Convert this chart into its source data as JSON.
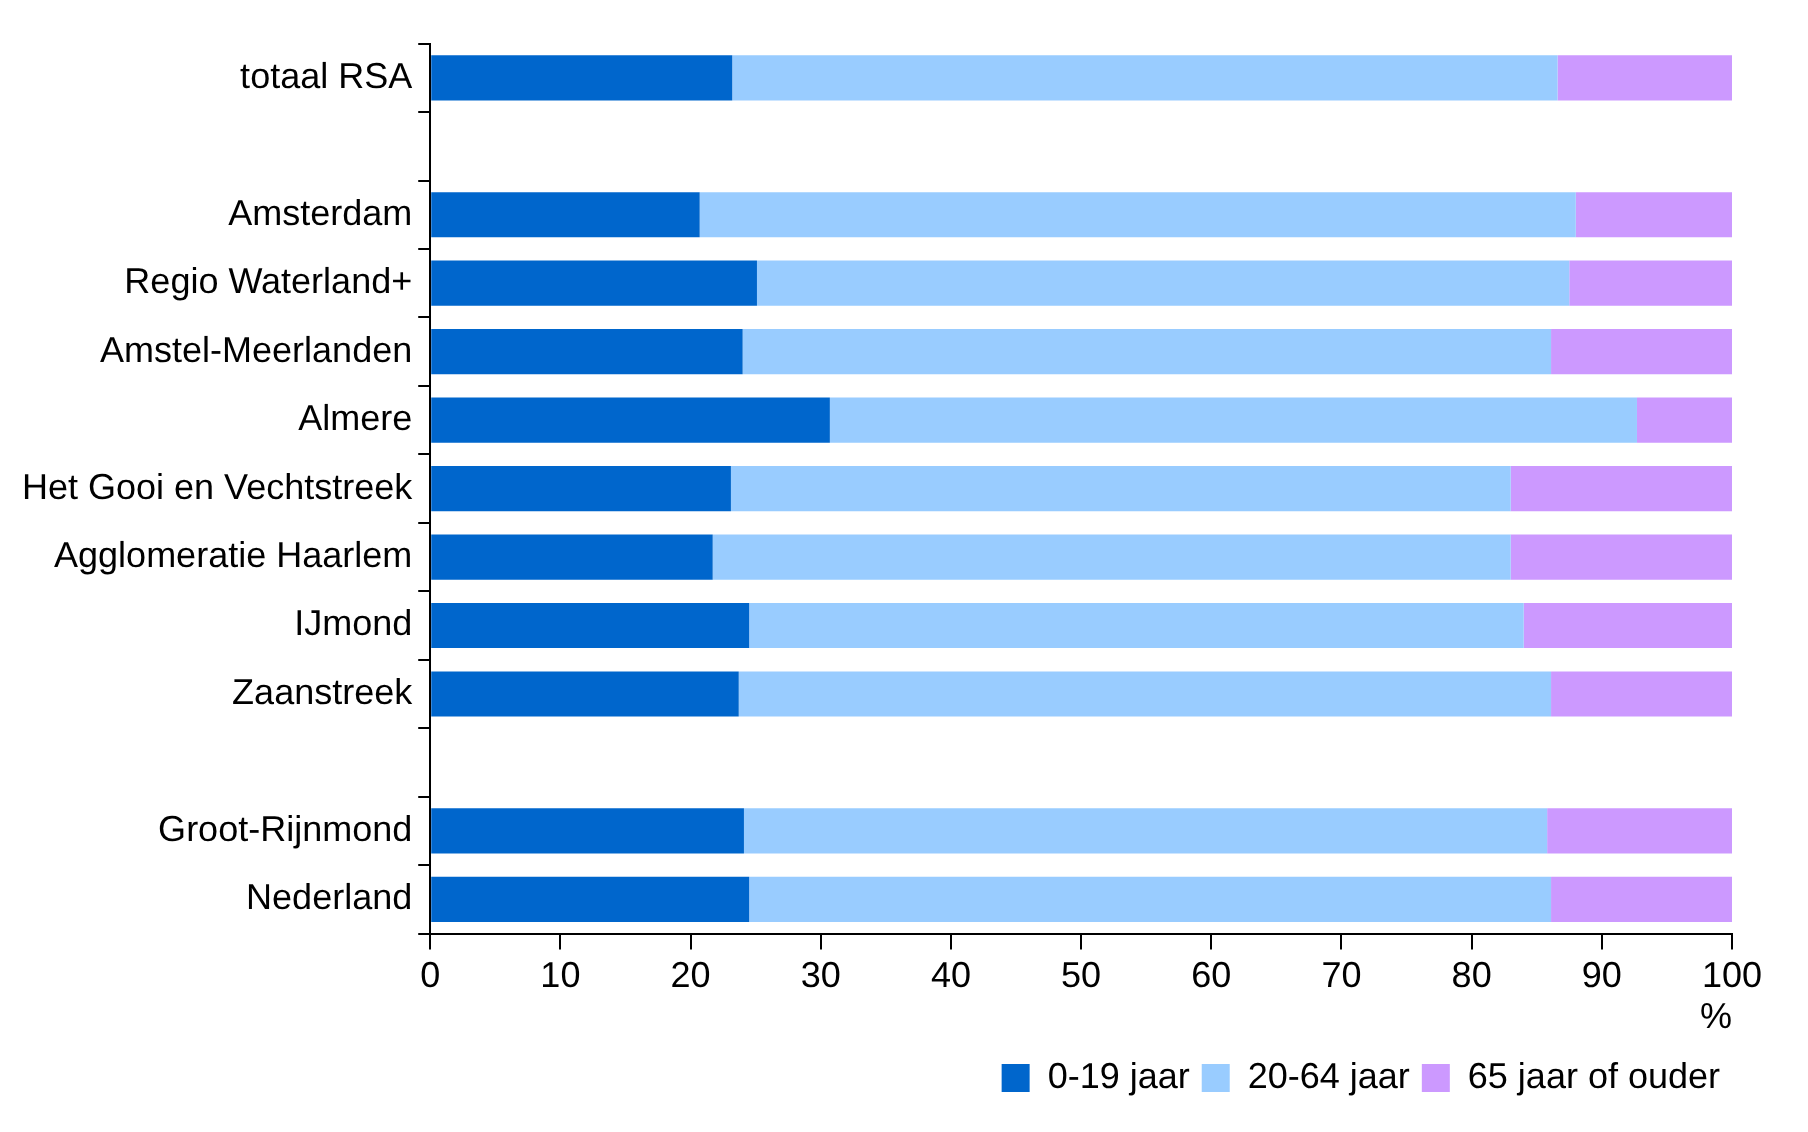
{
  "chart_data": {
    "type": "bar",
    "orientation": "horizontal",
    "stacked": true,
    "categories": [
      "totaal RSA",
      null,
      "Amsterdam",
      "Regio Waterland+",
      "Amstel-Meerlanden",
      "Almere",
      "Het Gooi en Vechtstreek",
      "Agglomeratie Haarlem",
      "IJmond",
      "Zaanstreek",
      null,
      "Groot-Rijnmond",
      "Nederland"
    ],
    "series": [
      {
        "name": "0-19 jaar",
        "color": "#0066cc",
        "values": [
          23.2,
          null,
          20.7,
          25.1,
          24.0,
          30.7,
          23.1,
          21.7,
          24.5,
          23.7,
          null,
          24.1,
          24.5
        ]
      },
      {
        "name": "20-64 jaar",
        "color": "#99ccff",
        "values": [
          63.4,
          null,
          67.3,
          62.4,
          62.1,
          62.0,
          59.9,
          61.3,
          59.5,
          62.4,
          null,
          61.7,
          61.6
        ]
      },
      {
        "name": "65 jaar of ouder",
        "color": "#cc99ff",
        "values": [
          13.4,
          null,
          12.0,
          12.5,
          13.9,
          7.3,
          17.0,
          17.0,
          16.0,
          13.9,
          null,
          14.2,
          13.9
        ]
      }
    ],
    "xlabel": "%",
    "xlim": [
      0,
      100
    ],
    "xticks": [
      0,
      10,
      20,
      30,
      40,
      50,
      60,
      70,
      80,
      90,
      100
    ],
    "grid": false,
    "legend": "bottom right"
  }
}
